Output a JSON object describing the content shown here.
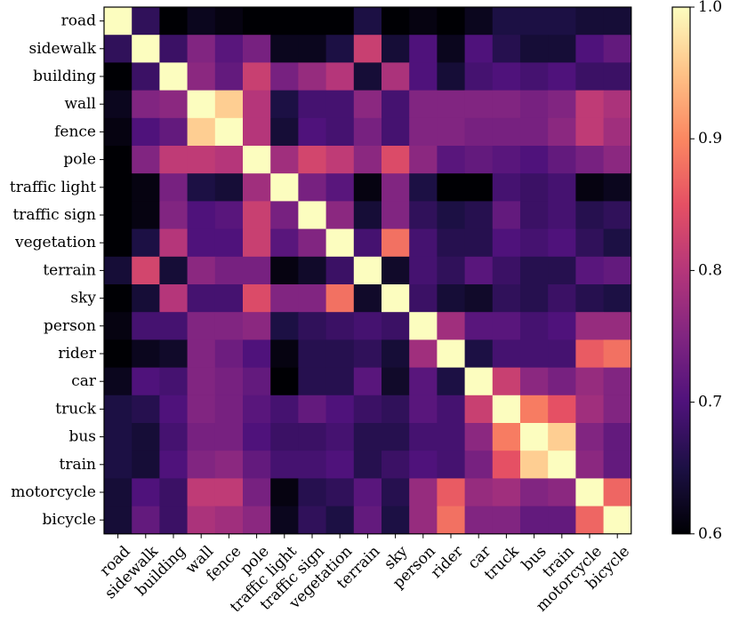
{
  "chart_data": {
    "type": "heatmap",
    "title": "",
    "xlabel": "",
    "ylabel": "",
    "colormap": "magma",
    "categories": [
      "road",
      "sidewalk",
      "building",
      "wall",
      "fence",
      "pole",
      "traffic light",
      "traffic sign",
      "vegetation",
      "terrain",
      "sky",
      "person",
      "rider",
      "car",
      "truck",
      "bus",
      "train",
      "motorcycle",
      "bicycle"
    ],
    "value_range": [
      0.6,
      1.0
    ],
    "colorbar_ticks": [
      "0.6",
      "0.7",
      "0.8",
      "0.9",
      "1.0"
    ],
    "colorbar_tick_values": [
      0.6,
      0.7,
      0.8,
      0.9,
      1.0
    ],
    "matrix": [
      [
        1.0,
        0.67,
        0.6,
        0.62,
        0.61,
        0.6,
        0.6,
        0.6,
        0.6,
        0.65,
        0.6,
        0.61,
        0.6,
        0.62,
        0.65,
        0.65,
        0.65,
        0.64,
        0.64
      ],
      [
        0.67,
        1.0,
        0.68,
        0.75,
        0.71,
        0.74,
        0.62,
        0.62,
        0.65,
        0.82,
        0.64,
        0.7,
        0.62,
        0.7,
        0.66,
        0.64,
        0.64,
        0.7,
        0.72
      ],
      [
        0.6,
        0.68,
        1.0,
        0.76,
        0.72,
        0.82,
        0.74,
        0.77,
        0.8,
        0.64,
        0.79,
        0.7,
        0.64,
        0.69,
        0.7,
        0.69,
        0.7,
        0.68,
        0.68
      ],
      [
        0.62,
        0.75,
        0.76,
        1.0,
        0.96,
        0.8,
        0.65,
        0.69,
        0.69,
        0.76,
        0.69,
        0.75,
        0.75,
        0.75,
        0.75,
        0.74,
        0.75,
        0.81,
        0.79
      ],
      [
        0.61,
        0.7,
        0.72,
        0.96,
        1.0,
        0.8,
        0.64,
        0.7,
        0.69,
        0.74,
        0.69,
        0.75,
        0.75,
        0.74,
        0.74,
        0.74,
        0.76,
        0.81,
        0.78
      ],
      [
        0.6,
        0.75,
        0.81,
        0.81,
        0.8,
        1.0,
        0.78,
        0.83,
        0.81,
        0.76,
        0.84,
        0.76,
        0.71,
        0.72,
        0.71,
        0.7,
        0.72,
        0.74,
        0.76
      ],
      [
        0.6,
        0.61,
        0.74,
        0.65,
        0.64,
        0.78,
        1.0,
        0.74,
        0.71,
        0.61,
        0.75,
        0.65,
        0.6,
        0.6,
        0.69,
        0.68,
        0.69,
        0.61,
        0.62
      ],
      [
        0.6,
        0.61,
        0.75,
        0.7,
        0.71,
        0.82,
        0.74,
        1.0,
        0.76,
        0.64,
        0.75,
        0.67,
        0.65,
        0.66,
        0.72,
        0.68,
        0.69,
        0.66,
        0.67
      ],
      [
        0.6,
        0.65,
        0.8,
        0.7,
        0.7,
        0.82,
        0.71,
        0.75,
        1.0,
        0.69,
        0.88,
        0.69,
        0.66,
        0.66,
        0.7,
        0.69,
        0.7,
        0.67,
        0.65
      ],
      [
        0.64,
        0.83,
        0.64,
        0.76,
        0.74,
        0.74,
        0.61,
        0.63,
        0.68,
        1.0,
        0.63,
        0.69,
        0.67,
        0.71,
        0.68,
        0.66,
        0.66,
        0.71,
        0.72
      ],
      [
        0.6,
        0.64,
        0.8,
        0.69,
        0.69,
        0.84,
        0.75,
        0.75,
        0.88,
        0.63,
        1.0,
        0.68,
        0.64,
        0.63,
        0.67,
        0.66,
        0.68,
        0.66,
        0.65
      ],
      [
        0.61,
        0.69,
        0.69,
        0.75,
        0.75,
        0.76,
        0.65,
        0.67,
        0.68,
        0.69,
        0.68,
        1.0,
        0.78,
        0.71,
        0.71,
        0.69,
        0.7,
        0.77,
        0.77
      ],
      [
        0.6,
        0.62,
        0.63,
        0.75,
        0.73,
        0.7,
        0.61,
        0.66,
        0.66,
        0.67,
        0.64,
        0.78,
        1.0,
        0.65,
        0.69,
        0.69,
        0.69,
        0.86,
        0.88
      ],
      [
        0.62,
        0.7,
        0.69,
        0.75,
        0.74,
        0.72,
        0.6,
        0.66,
        0.66,
        0.71,
        0.63,
        0.71,
        0.65,
        1.0,
        0.82,
        0.76,
        0.74,
        0.77,
        0.75
      ],
      [
        0.65,
        0.66,
        0.7,
        0.75,
        0.74,
        0.71,
        0.69,
        0.72,
        0.7,
        0.68,
        0.67,
        0.71,
        0.69,
        0.82,
        1.0,
        0.89,
        0.85,
        0.78,
        0.75
      ],
      [
        0.65,
        0.64,
        0.69,
        0.74,
        0.74,
        0.7,
        0.68,
        0.68,
        0.69,
        0.66,
        0.66,
        0.69,
        0.69,
        0.76,
        0.89,
        1.0,
        0.96,
        0.75,
        0.72
      ],
      [
        0.65,
        0.64,
        0.7,
        0.75,
        0.76,
        0.72,
        0.69,
        0.69,
        0.7,
        0.66,
        0.68,
        0.7,
        0.69,
        0.74,
        0.85,
        0.96,
        1.0,
        0.76,
        0.72
      ],
      [
        0.64,
        0.7,
        0.68,
        0.81,
        0.81,
        0.74,
        0.61,
        0.66,
        0.67,
        0.71,
        0.66,
        0.77,
        0.86,
        0.77,
        0.78,
        0.75,
        0.76,
        1.0,
        0.87
      ],
      [
        0.64,
        0.72,
        0.68,
        0.79,
        0.78,
        0.76,
        0.62,
        0.67,
        0.65,
        0.72,
        0.65,
        0.77,
        0.88,
        0.75,
        0.75,
        0.72,
        0.72,
        0.87,
        1.0
      ]
    ]
  }
}
